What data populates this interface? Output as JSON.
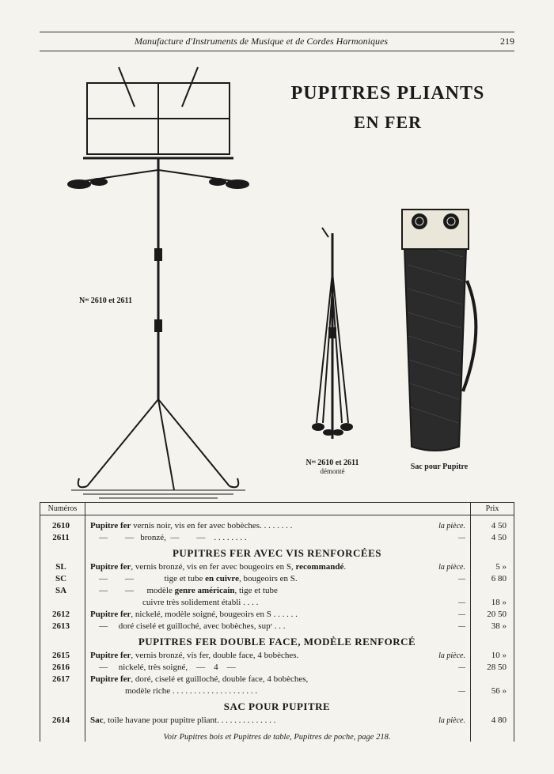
{
  "header": {
    "title": "Manufacture d'Instruments de Musique et de Cordes Harmoniques",
    "page_number": "219"
  },
  "title": {
    "line1": "PUPITRES PLIANTS",
    "line2": "EN FER"
  },
  "captions": {
    "stand": "Nᵒˢ 2610 et 2611",
    "folded_main": "Nᵒˢ 2610 et 2611",
    "folded_sub": "démonté",
    "bag": "Sac pour Pupitre"
  },
  "table": {
    "head_num": "Numéros",
    "head_prix": "Prix",
    "sections": [
      {
        "rows": [
          {
            "num": "2610",
            "desc": "<span class='b'>Pupitre fer</span> vernis noir, vis en fer avec bobèches. . . . . . . .",
            "unit": "la pièce.",
            "prix": "4 50"
          },
          {
            "num": "2611",
            "desc": "&nbsp;&nbsp;&nbsp;&nbsp;—&nbsp;&nbsp;&nbsp;&nbsp;&nbsp;&nbsp;&nbsp;&nbsp;—&nbsp;&nbsp;&nbsp;bronzé,&nbsp;&nbsp;—&nbsp;&nbsp;&nbsp;&nbsp;&nbsp;&nbsp;&nbsp;&nbsp;—&nbsp;&nbsp;&nbsp;&nbsp;. . . . . . . .",
            "unit": "—",
            "prix": "4 50"
          }
        ]
      },
      {
        "heading": "PUPITRES FER AVEC VIS RENFORCÉES",
        "rows": [
          {
            "num": "SL",
            "desc": "<span class='b'>Pupitre fer</span>, vernis bronzé, vis en fer avec bougeoirs en S, <span class='b'>recommandé</span>.",
            "unit": "la pièce.",
            "prix": "5  »"
          },
          {
            "num": "SC",
            "desc": "&nbsp;&nbsp;&nbsp;&nbsp;—&nbsp;&nbsp;&nbsp;&nbsp;&nbsp;&nbsp;&nbsp;&nbsp;—&nbsp;&nbsp;&nbsp;&nbsp;&nbsp;&nbsp;&nbsp;&nbsp;&nbsp;&nbsp;&nbsp;&nbsp;&nbsp;&nbsp;tige et tube <span class='b'>en cuivre</span>, bougeoirs en S.",
            "unit": "—",
            "prix": "6 80"
          },
          {
            "num": "SA",
            "desc": "&nbsp;&nbsp;&nbsp;&nbsp;—&nbsp;&nbsp;&nbsp;&nbsp;&nbsp;&nbsp;&nbsp;&nbsp;—&nbsp;&nbsp;&nbsp;&nbsp;&nbsp;&nbsp;modèle <span class='b'>genre américain</span>, tige et tube",
            "unit": "",
            "prix": ""
          },
          {
            "num": "",
            "desc": "&nbsp;&nbsp;&nbsp;&nbsp;&nbsp;&nbsp;&nbsp;&nbsp;&nbsp;&nbsp;&nbsp;&nbsp;&nbsp;&nbsp;&nbsp;&nbsp;&nbsp;&nbsp;&nbsp;&nbsp;&nbsp;&nbsp;&nbsp;&nbsp;cuivre très solidement établi . . . .",
            "unit": "—",
            "prix": "18  »"
          },
          {
            "num": "2612",
            "desc": "<span class='b'>Pupitre fer</span>, nickelé, modèle soigné, bougeoirs en S . . . . . .",
            "unit": "—",
            "prix": "20 50"
          },
          {
            "num": "2613",
            "desc": "&nbsp;&nbsp;&nbsp;&nbsp;—&nbsp;&nbsp;&nbsp;&nbsp;&nbsp;doré ciselé et guilloché, avec bobèches, supʳ . . .",
            "unit": "—",
            "prix": "38  »"
          }
        ]
      },
      {
        "heading": "PUPITRES FER DOUBLE FACE, MODÈLE RENFORCÉ",
        "rows": [
          {
            "num": "2615",
            "desc": "<span class='b'>Pupitre fer</span>, vernis bronzé, vis fer, double face, 4 bobèches.",
            "unit": "la pièce.",
            "prix": "10  »"
          },
          {
            "num": "2616",
            "desc": "&nbsp;&nbsp;&nbsp;&nbsp;—&nbsp;&nbsp;&nbsp;&nbsp;&nbsp;nickelé, très soigné,&nbsp;&nbsp;&nbsp;&nbsp;—&nbsp;&nbsp;&nbsp;&nbsp;4&nbsp;&nbsp;&nbsp;&nbsp;—",
            "unit": "—",
            "prix": "28 50"
          },
          {
            "num": "2617",
            "desc": "<span class='b'>Pupitre fer</span>, doré, ciselé et guilloché, double face, 4 bobèches,",
            "unit": "",
            "prix": ""
          },
          {
            "num": "",
            "desc": "&nbsp;&nbsp;&nbsp;&nbsp;&nbsp;&nbsp;&nbsp;&nbsp;&nbsp;&nbsp;&nbsp;&nbsp;&nbsp;&nbsp;&nbsp;&nbsp;modèle riche . . . . . . . . . . . . . . . . . . . .",
            "unit": "—",
            "prix": "56  »"
          }
        ]
      },
      {
        "heading": "SAC POUR PUPITRE",
        "rows": [
          {
            "num": "2614",
            "desc": "<span class='b'>Sac</span>, toile havane pour pupitre pliant. . . . . . . . . . . . . .",
            "unit": "la pièce.",
            "prix": "4 80"
          }
        ]
      }
    ],
    "footnote": "Voir Pupitres bois et Pupitres de table, Pupitres de poche, page 218."
  },
  "style": {
    "bg": "#f5f3ed",
    "ink": "#1a1a1a",
    "title_font_size": 24,
    "body_font_size": 11
  }
}
